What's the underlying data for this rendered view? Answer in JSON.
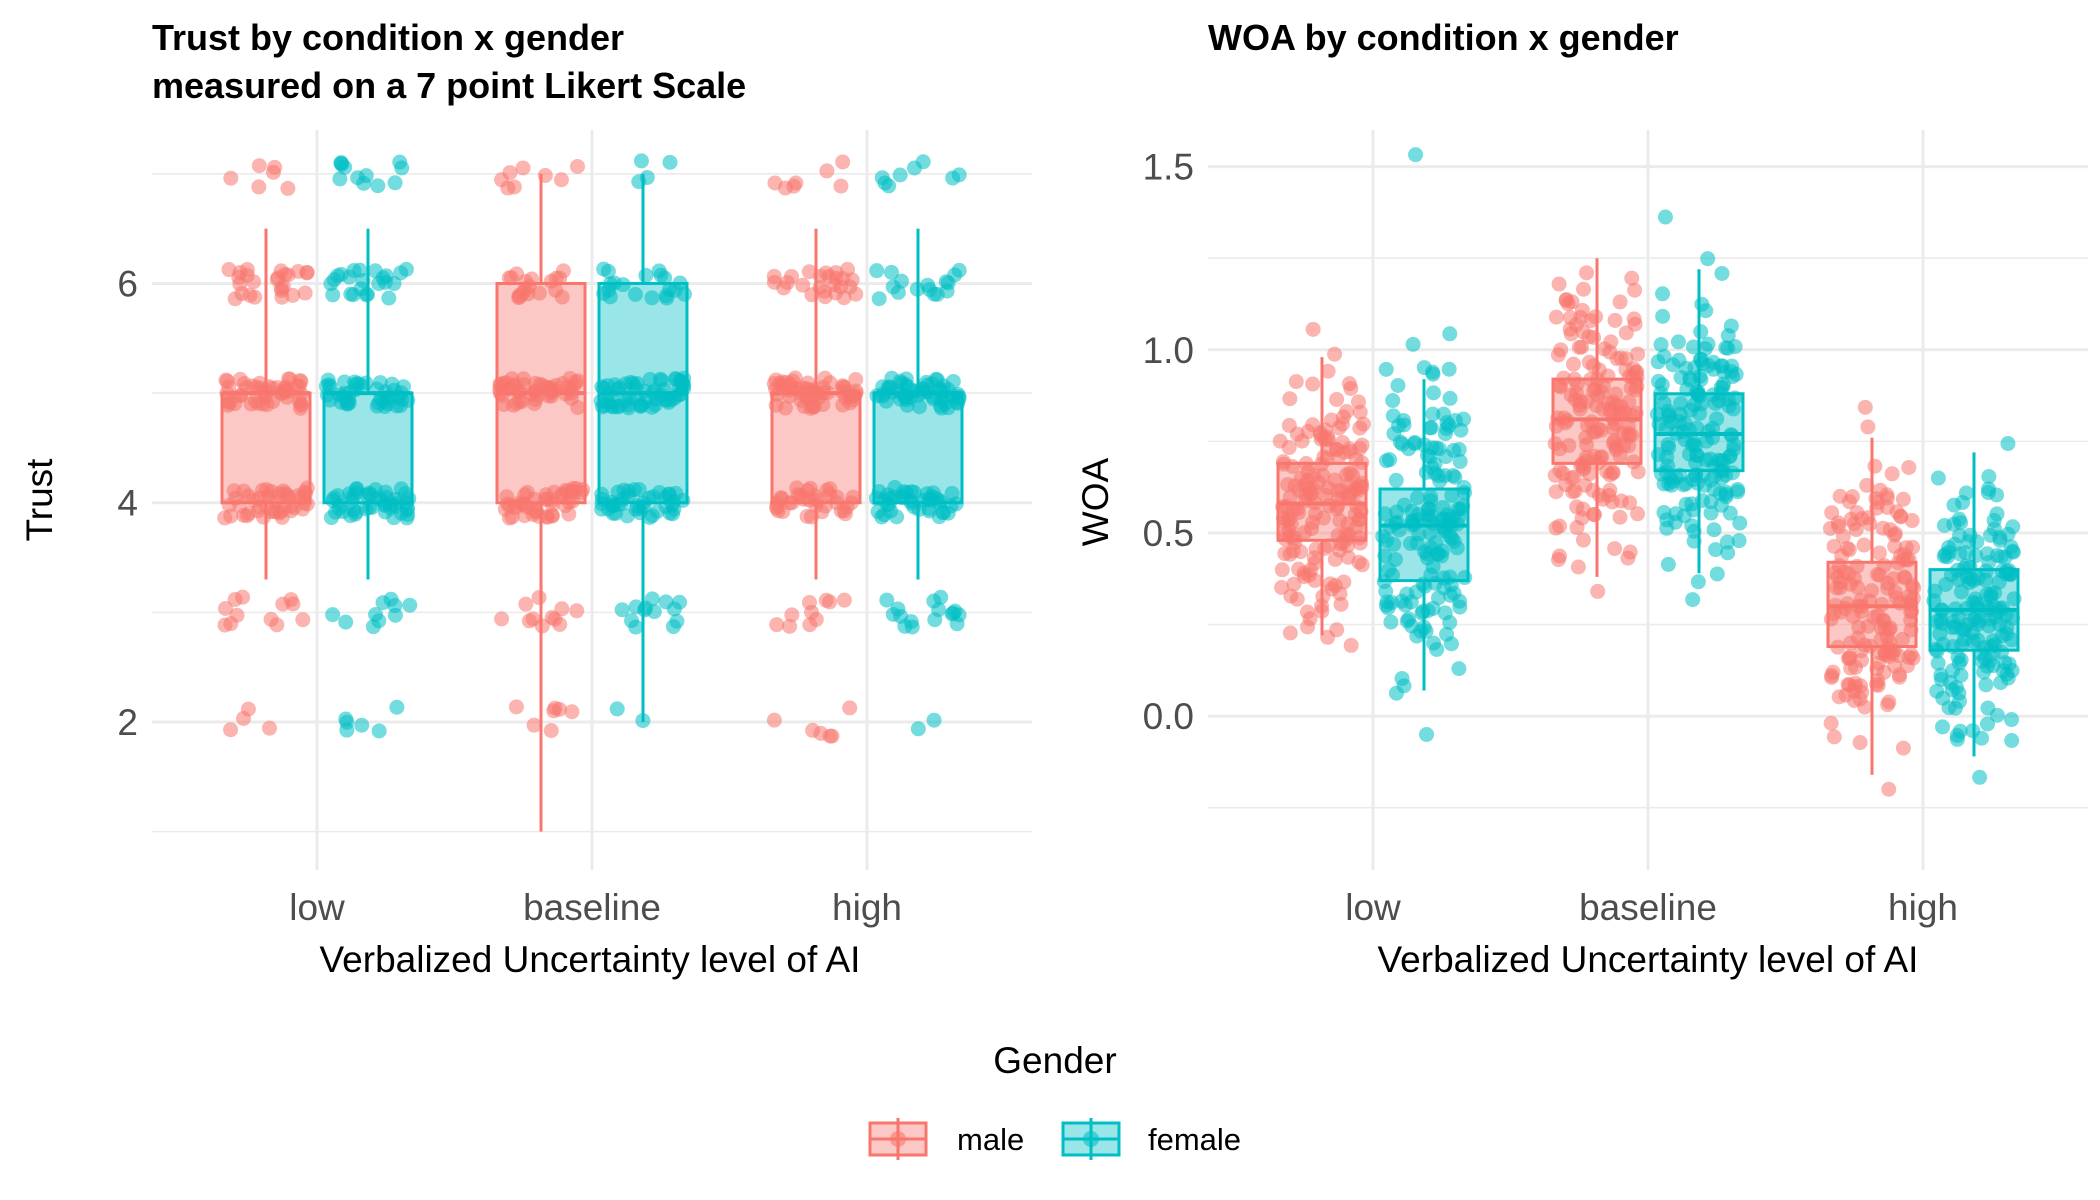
{
  "legend": {
    "title": "Gender",
    "entries": [
      {
        "name": "male",
        "color": "#F8766D"
      },
      {
        "name": "female",
        "color": "#00BFC4"
      }
    ]
  },
  "chart_data": [
    {
      "type": "boxplot",
      "title_lines": [
        "Trust by condition x gender",
        "measured on a 7 point Likert Scale"
      ],
      "xlabel": "Verbalized Uncertainty level of AI",
      "ylabel": "Trust",
      "categories": [
        "low",
        "baseline",
        "high"
      ],
      "y_ticks": [
        "2",
        "4",
        "6"
      ],
      "ylim": [
        0.65,
        7.4
      ],
      "grid": true,
      "series": [
        {
          "name": "male",
          "color": "#F8766D",
          "boxes": [
            {
              "q1": 4,
              "median": 5,
              "q3": 5,
              "whisker_low": 3.3,
              "whisker_high": 6.5
            },
            {
              "q1": 4,
              "median": 5,
              "q3": 6,
              "whisker_low": 1,
              "whisker_high": 7
            },
            {
              "q1": 4,
              "median": 5,
              "q3": 5,
              "whisker_low": 3.3,
              "whisker_high": 6.5
            }
          ]
        },
        {
          "name": "female",
          "color": "#00BFC4",
          "boxes": [
            {
              "q1": 4,
              "median": 5,
              "q3": 5,
              "whisker_low": 3.3,
              "whisker_high": 6.5
            },
            {
              "q1": 4,
              "median": 5,
              "q3": 6,
              "whisker_low": 2,
              "whisker_high": 7
            },
            {
              "q1": 4,
              "median": 5,
              "q3": 5,
              "whisker_low": 3.3,
              "whisker_high": 6.5
            }
          ]
        }
      ]
    },
    {
      "type": "boxplot",
      "title_lines": [
        "WOA by condition x gender"
      ],
      "xlabel": "Verbalized Uncertainty level of AI",
      "ylabel": "WOA",
      "categories": [
        "low",
        "baseline",
        "high"
      ],
      "y_ticks": [
        "0.0",
        "0.5",
        "1.0",
        "1.5"
      ],
      "ylim": [
        -0.42,
        1.6
      ],
      "grid": true,
      "series": [
        {
          "name": "male",
          "color": "#F8766D",
          "boxes": [
            {
              "q1": 0.48,
              "median": 0.58,
              "q3": 0.69,
              "whisker_low": 0.22,
              "whisker_high": 0.98
            },
            {
              "q1": 0.69,
              "median": 0.81,
              "q3": 0.92,
              "whisker_low": 0.38,
              "whisker_high": 1.25
            },
            {
              "q1": 0.19,
              "median": 0.3,
              "q3": 0.42,
              "whisker_low": -0.16,
              "whisker_high": 0.76
            }
          ]
        },
        {
          "name": "female",
          "color": "#00BFC4",
          "boxes": [
            {
              "q1": 0.37,
              "median": 0.52,
              "q3": 0.62,
              "whisker_low": 0.07,
              "whisker_high": 0.92
            },
            {
              "q1": 0.67,
              "median": 0.77,
              "q3": 0.88,
              "whisker_low": 0.39,
              "whisker_high": 1.22
            },
            {
              "q1": 0.18,
              "median": 0.29,
              "q3": 0.4,
              "whisker_low": -0.11,
              "whisker_high": 0.72
            }
          ]
        }
      ]
    }
  ]
}
